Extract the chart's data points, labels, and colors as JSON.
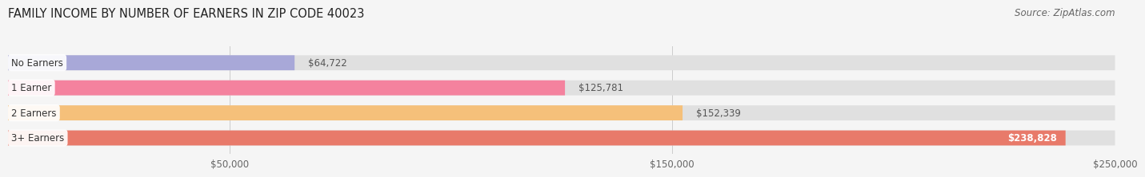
{
  "title": "FAMILY INCOME BY NUMBER OF EARNERS IN ZIP CODE 40023",
  "source": "Source: ZipAtlas.com",
  "categories": [
    "No Earners",
    "1 Earner",
    "2 Earners",
    "3+ Earners"
  ],
  "values": [
    64722,
    125781,
    152339,
    238828
  ],
  "labels": [
    "$64,722",
    "$125,781",
    "$152,339",
    "$238,828"
  ],
  "bar_colors": [
    "#a8a8d8",
    "#f4829e",
    "#f5c07a",
    "#e87a6a"
  ],
  "bar_bg_color": "#e0e0e0",
  "xlim": [
    0,
    250000
  ],
  "xticks": [
    50000,
    150000,
    250000
  ],
  "xtick_labels": [
    "$50,000",
    "$150,000",
    "$250,000"
  ],
  "title_fontsize": 10.5,
  "source_fontsize": 8.5,
  "bg_color": "#f5f5f5",
  "bar_height": 0.6,
  "label_inside_threshold": 210000
}
